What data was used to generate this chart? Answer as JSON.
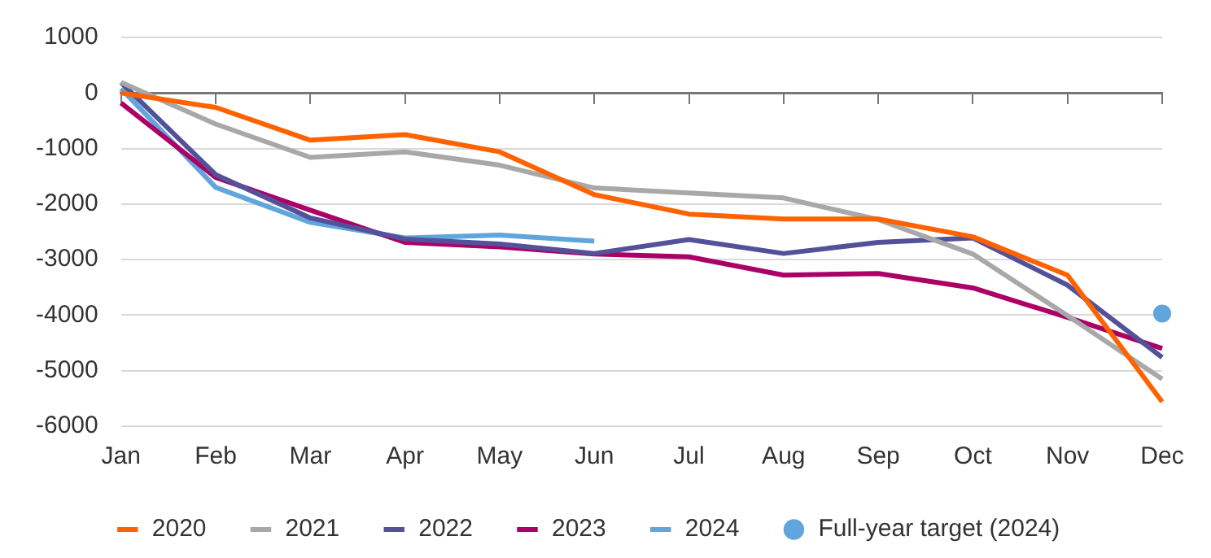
{
  "chart_data": {
    "type": "line",
    "categories": [
      "Jan",
      "Feb",
      "Mar",
      "Apr",
      "May",
      "Jun",
      "Jul",
      "Aug",
      "Sep",
      "Oct",
      "Nov",
      "Dec"
    ],
    "series": [
      {
        "name": "2020",
        "color": "#ff6200",
        "values": [
          0,
          -260,
          -850,
          -750,
          -1060,
          -1830,
          -2180,
          -2270,
          -2270,
          -2590,
          -3280,
          -5560
        ]
      },
      {
        "name": "2021",
        "color": "#a8a8a8",
        "values": [
          190,
          -560,
          -1160,
          -1060,
          -1300,
          -1710,
          -1800,
          -1890,
          -2280,
          -2900,
          -4010,
          -5150
        ]
      },
      {
        "name": "2022",
        "color": "#525199",
        "values": [
          190,
          -1470,
          -2250,
          -2630,
          -2720,
          -2890,
          -2640,
          -2890,
          -2690,
          -2610,
          -3460,
          -4760
        ]
      },
      {
        "name": "2023",
        "color": "#ab0066",
        "values": [
          -180,
          -1520,
          -2110,
          -2690,
          -2770,
          -2900,
          -2950,
          -3280,
          -3250,
          -3510,
          -4040,
          -4600
        ]
      },
      {
        "name": "2024",
        "color": "#60a5dc",
        "values": [
          80,
          -1700,
          -2330,
          -2610,
          -2560,
          -2670,
          null,
          null,
          null,
          null,
          null,
          null
        ]
      },
      {
        "name": "Full-year target (2024)",
        "type": "scatter",
        "color": "#60a5dc",
        "marker": "circle",
        "values": [
          null,
          null,
          null,
          null,
          null,
          null,
          null,
          null,
          null,
          null,
          null,
          -3970
        ]
      }
    ],
    "ylim": [
      -6000,
      1000
    ],
    "yticks": [
      -6000,
      -5000,
      -4000,
      -3000,
      -2000,
      -1000,
      0,
      1000
    ],
    "grid": "y",
    "legend": "bottom",
    "marker": "none",
    "line_style": "solid"
  }
}
